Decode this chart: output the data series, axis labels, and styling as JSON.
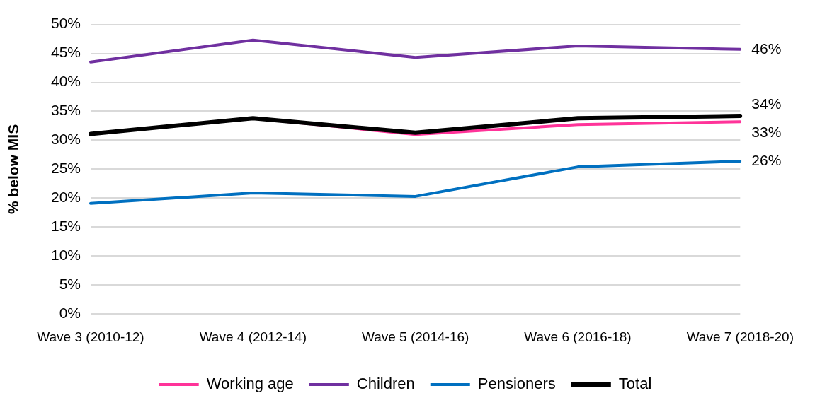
{
  "chart_data": {
    "type": "line",
    "ylabel": "% below MIS",
    "categories": [
      "Wave 3 (2010-12)",
      "Wave 4 (2012-14)",
      "Wave 5 (2014-16)",
      "Wave 6 (2016-18)",
      "Wave 7 (2018-20)"
    ],
    "series": [
      {
        "name": "Working age",
        "color": "#ff3399",
        "values": [
          null,
          33.8,
          31.0,
          32.7,
          33.2
        ],
        "value_labels": [
          null,
          null,
          null,
          null,
          "33%"
        ]
      },
      {
        "name": "Children",
        "color": "#7030a0",
        "values": [
          43.5,
          47.3,
          44.3,
          46.3,
          45.7
        ],
        "value_labels": [
          null,
          null,
          null,
          null,
          "46%"
        ]
      },
      {
        "name": "Pensioners",
        "color": "#0070c0",
        "values": [
          19.1,
          20.9,
          20.3,
          25.4,
          26.4
        ],
        "value_labels": [
          null,
          null,
          null,
          null,
          "26%"
        ]
      },
      {
        "name": "Total",
        "color": "#000000",
        "values": [
          31.1,
          33.8,
          31.3,
          33.8,
          34.2
        ],
        "value_labels": [
          null,
          null,
          null,
          null,
          "34%"
        ]
      }
    ],
    "ylim": [
      0,
      50
    ],
    "yticks": [
      {
        "value": 0,
        "label": "0%"
      },
      {
        "value": 5,
        "label": "5%"
      },
      {
        "value": 10,
        "label": "10%"
      },
      {
        "value": 15,
        "label": "15%"
      },
      {
        "value": 20,
        "label": "20%"
      },
      {
        "value": 25,
        "label": "25%"
      },
      {
        "value": 30,
        "label": "30%"
      },
      {
        "value": 35,
        "label": "35%"
      },
      {
        "value": 40,
        "label": "40%"
      },
      {
        "value": 45,
        "label": "45%"
      },
      {
        "value": 50,
        "label": "50%"
      }
    ],
    "grid": "y",
    "legend": "bottom"
  }
}
